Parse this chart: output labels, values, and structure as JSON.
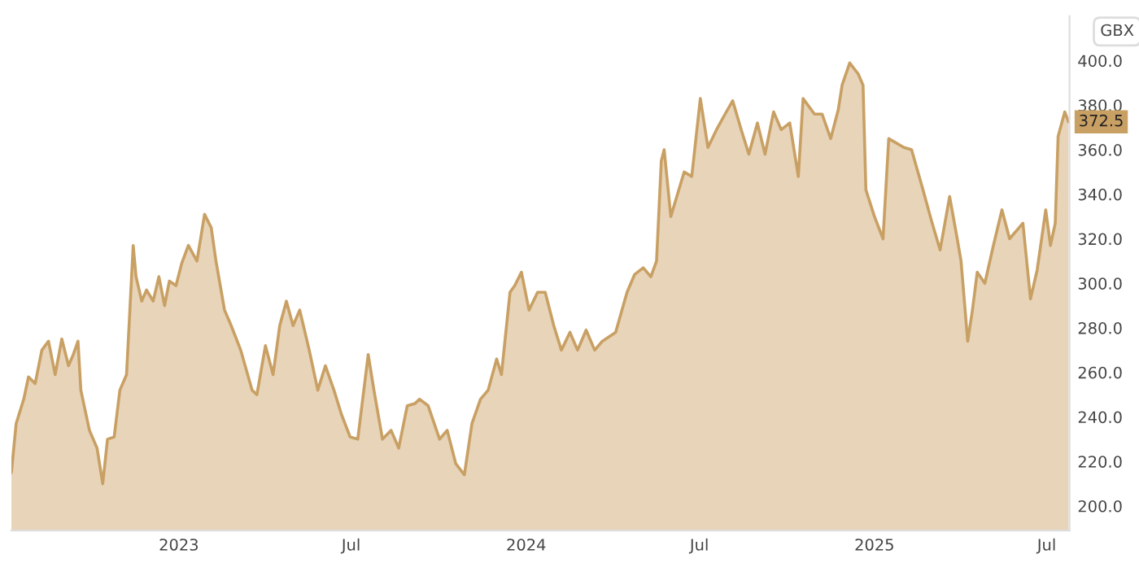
{
  "chart_data": {
    "type": "area",
    "ylabel": "GBX",
    "x": [
      "2022-07-09",
      "2022-07-14",
      "2022-07-22",
      "2022-07-27",
      "2022-08-03",
      "2022-08-10",
      "2022-08-17",
      "2022-08-24",
      "2022-08-31",
      "2022-09-07",
      "2022-09-12",
      "2022-09-17",
      "2022-09-20",
      "2022-09-29",
      "2022-10-07",
      "2022-10-13",
      "2022-10-18",
      "2022-10-25",
      "2022-10-31",
      "2022-11-07",
      "2022-11-11",
      "2022-11-14",
      "2022-11-17",
      "2022-11-23",
      "2022-11-28",
      "2022-12-05",
      "2022-12-11",
      "2022-12-17",
      "2022-12-22",
      "2022-12-29",
      "2023-01-04",
      "2023-01-11",
      "2023-01-20",
      "2023-01-28",
      "2023-02-04",
      "2023-02-09",
      "2023-02-18",
      "2023-02-25",
      "2023-03-07",
      "2023-03-19",
      "2023-03-24",
      "2023-04-02",
      "2023-04-10",
      "2023-04-17",
      "2023-04-24",
      "2023-05-01",
      "2023-05-08",
      "2023-05-18",
      "2023-05-27",
      "2023-06-04",
      "2023-06-13",
      "2023-06-21",
      "2023-06-30",
      "2023-07-08",
      "2023-07-19",
      "2023-07-25",
      "2023-08-03",
      "2023-08-12",
      "2023-08-20",
      "2023-08-29",
      "2023-09-06",
      "2023-09-11",
      "2023-09-20",
      "2023-10-02",
      "2023-10-10",
      "2023-10-19",
      "2023-10-28",
      "2023-11-05",
      "2023-11-14",
      "2023-11-22",
      "2023-12-01",
      "2023-12-06",
      "2023-12-15",
      "2023-12-20",
      "2023-12-27",
      "2024-01-04",
      "2024-01-13",
      "2024-01-21",
      "2024-01-30",
      "2024-02-07",
      "2024-02-16",
      "2024-02-24",
      "2024-03-04",
      "2024-03-13",
      "2024-03-21",
      "2024-04-04",
      "2024-04-16",
      "2024-04-24",
      "2024-05-03",
      "2024-05-11",
      "2024-05-17",
      "2024-05-22",
      "2024-05-25",
      "2024-06-01",
      "2024-06-15",
      "2024-06-23",
      "2024-07-02",
      "2024-07-10",
      "2024-07-19",
      "2024-07-28",
      "2024-08-05",
      "2024-08-14",
      "2024-08-22",
      "2024-08-31",
      "2024-09-08",
      "2024-09-17",
      "2024-09-25",
      "2024-10-04",
      "2024-10-13",
      "2024-10-18",
      "2024-10-30",
      "2024-11-07",
      "2024-11-16",
      "2024-11-24",
      "2024-11-28",
      "2024-12-06",
      "2024-12-15",
      "2024-12-20",
      "2024-12-23",
      "2025-01-01",
      "2025-01-10",
      "2025-01-16",
      "2025-02-01",
      "2025-02-09",
      "2025-02-21",
      "2025-03-02",
      "2025-03-11",
      "2025-03-21",
      "2025-03-29",
      "2025-04-02",
      "2025-04-09",
      "2025-04-14",
      "2025-04-19",
      "2025-04-27",
      "2025-05-06",
      "2025-05-15",
      "2025-05-23",
      "2025-06-06",
      "2025-06-14",
      "2025-06-21",
      "2025-06-30",
      "2025-07-05",
      "2025-07-10",
      "2025-07-13",
      "2025-07-20",
      "2025-07-24"
    ],
    "series": [
      {
        "color": "#c9a064",
        "values": [
          215,
          237,
          248,
          258,
          255,
          270,
          274,
          259,
          275,
          263,
          268,
          274,
          252,
          234,
          226,
          210,
          230,
          231,
          252,
          259,
          292,
          317,
          303,
          292,
          297,
          292,
          303,
          290,
          301,
          299,
          309,
          317,
          310,
          331,
          325,
          310,
          288,
          281,
          270,
          252,
          250,
          272,
          259,
          281,
          292,
          281,
          288,
          270,
          252,
          263,
          252,
          241,
          231,
          230,
          268,
          252,
          230,
          234,
          226,
          245,
          246,
          248,
          245,
          230,
          234,
          219,
          214,
          237,
          248,
          252,
          266,
          259,
          296,
          299,
          305,
          288,
          296,
          296,
          281,
          270,
          278,
          270,
          279,
          270,
          274,
          278,
          296,
          304,
          307,
          303,
          310,
          355,
          360,
          330,
          350,
          348,
          383,
          361,
          369,
          376,
          382,
          369,
          358,
          372,
          358,
          377,
          369,
          372,
          348,
          383,
          376,
          376,
          365,
          378,
          389,
          399,
          394,
          389,
          342,
          330,
          320,
          365,
          361,
          360,
          342,
          328,
          315,
          339,
          320,
          310,
          274,
          288,
          305,
          300,
          317,
          333,
          320,
          327,
          293,
          306,
          333,
          317,
          327,
          366,
          377,
          372.5
        ]
      }
    ],
    "xlim": [
      "2022-07-09",
      "2025-07-25"
    ],
    "xticks": [
      {
        "value": "2023-01-01",
        "label": "2023"
      },
      {
        "value": "2023-07-01",
        "label": "Jul"
      },
      {
        "value": "2024-01-01",
        "label": "2024"
      },
      {
        "value": "2024-07-01",
        "label": "Jul"
      },
      {
        "value": "2025-01-01",
        "label": "2025"
      },
      {
        "value": "2025-07-01",
        "label": "Jul"
      }
    ],
    "ylim": [
      189,
      420
    ],
    "yticks": [
      {
        "value": 200,
        "label": "200.0"
      },
      {
        "value": 220,
        "label": "220.0"
      },
      {
        "value": 240,
        "label": "240.0"
      },
      {
        "value": 260,
        "label": "260.0"
      },
      {
        "value": 280,
        "label": "280.0"
      },
      {
        "value": 300,
        "label": "300.0"
      },
      {
        "value": 320,
        "label": "320.0"
      },
      {
        "value": 340,
        "label": "340.0"
      },
      {
        "value": 360,
        "label": "360.0"
      },
      {
        "value": 380,
        "label": "380.0"
      },
      {
        "value": 400,
        "label": "400.0"
      }
    ],
    "annotations": [
      "372.5"
    ],
    "grid": false,
    "legend": false
  }
}
